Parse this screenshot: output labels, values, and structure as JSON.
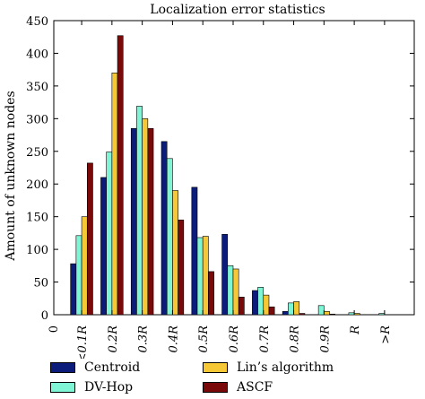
{
  "chart_data": {
    "type": "bar",
    "title": "Localization error statistics",
    "xlabel": "",
    "ylabel": "Amount of unknown nodes",
    "ylim": [
      0,
      450
    ],
    "yticks": [
      0,
      50,
      100,
      150,
      200,
      250,
      300,
      350,
      400,
      450
    ],
    "x_zero_label": "0",
    "categories": [
      "<0.1R",
      "0.2R",
      "0.3R",
      "0.4R",
      "0.5R",
      "0.6R",
      "0.7R",
      "0.8R",
      "0.9R",
      "R",
      ">R"
    ],
    "series": [
      {
        "name": "Centroid",
        "color": "#0b1c7a",
        "values": [
          78,
          210,
          285,
          265,
          195,
          123,
          37,
          5,
          0,
          0,
          0
        ]
      },
      {
        "name": "DV-Hop",
        "color": "#7ff5d6",
        "values": [
          121,
          249,
          319,
          239,
          118,
          75,
          42,
          18,
          14,
          3,
          2
        ]
      },
      {
        "name": "Lin’s algorithm",
        "color": "#f7c835",
        "values": [
          150,
          370,
          300,
          190,
          120,
          70,
          30,
          20,
          5,
          2,
          0
        ]
      },
      {
        "name": "ASCF",
        "color": "#7a0a0a",
        "values": [
          232,
          427,
          285,
          145,
          66,
          27,
          12,
          2,
          1,
          0,
          0
        ]
      }
    ],
    "legend_position": "bottom",
    "grid": false
  }
}
